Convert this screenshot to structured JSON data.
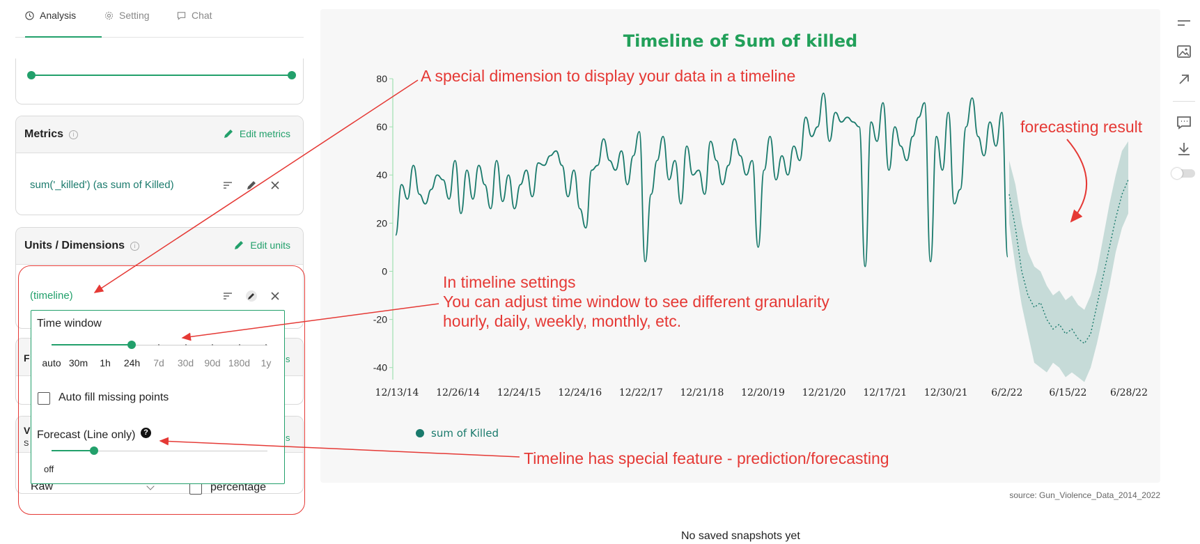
{
  "tabs": [
    {
      "label": "Analysis",
      "icon": "clock-icon",
      "active": true
    },
    {
      "label": "Setting",
      "icon": "gear-icon",
      "active": false
    },
    {
      "label": "Chat",
      "icon": "chat-icon",
      "active": false
    }
  ],
  "metrics": {
    "title": "Metrics",
    "edit_label": "Edit metrics",
    "item": "sum('_killed') (as sum of Killed)"
  },
  "units": {
    "title": "Units / Dimensions",
    "edit_label": "Edit units",
    "item": "(timeline)"
  },
  "popup": {
    "time_window_label": "Time window",
    "time_window_options": [
      "auto",
      "30m",
      "1h",
      "24h",
      "7d",
      "30d",
      "90d",
      "180d",
      "1y"
    ],
    "time_window_selected": "24h",
    "auto_fill_label": "Auto fill missing points",
    "auto_fill_checked": false,
    "forecast_label": "Forecast (Line only)",
    "forecast_help": "?",
    "forecast_value": "off"
  },
  "hidden_peeks": {
    "f_letter": "F",
    "v_letter": "V",
    "s_letter": "S",
    "s_green": "s",
    "raw_label": "Raw",
    "percentage_label": "percentage"
  },
  "chart_data": {
    "type": "line",
    "title": "Timeline of Sum of killed",
    "xlabel": "",
    "ylabel": "",
    "ylim": [
      -45,
      80
    ],
    "yticks": [
      80,
      60,
      40,
      20,
      0,
      -20,
      -40
    ],
    "x_tick_labels": [
      "12/13/14",
      "12/26/14",
      "12/24/15",
      "12/24/16",
      "12/22/17",
      "12/21/18",
      "12/20/19",
      "12/21/20",
      "12/17/21",
      "12/30/21",
      "6/2/22",
      "6/15/22",
      "6/28/22"
    ],
    "series": [
      {
        "name": "sum of Killed",
        "color": "#1a7a6c",
        "values": [
          15,
          36,
          30,
          44,
          32,
          28,
          34,
          40,
          38,
          30,
          46,
          24,
          42,
          30,
          44,
          36,
          26,
          46,
          29,
          40,
          26,
          36,
          42,
          31,
          45,
          44,
          48,
          50,
          44,
          31,
          42,
          26,
          18,
          42,
          44,
          55,
          46,
          42,
          50,
          36,
          48,
          58,
          4,
          32,
          46,
          56,
          38,
          46,
          28,
          52,
          40,
          42,
          32,
          54,
          46,
          36,
          44,
          55,
          48,
          40,
          46,
          10,
          42,
          56,
          38,
          48,
          40,
          52,
          46,
          64,
          56,
          60,
          74,
          54,
          66,
          62,
          64,
          62,
          60,
          2,
          62,
          54,
          70,
          42,
          60,
          52,
          46,
          56,
          64,
          70,
          4,
          56,
          42,
          66,
          28,
          34,
          60,
          72,
          56,
          48,
          62,
          52,
          66,
          6
        ]
      },
      {
        "name": "forecast",
        "color": "#1a7a6c",
        "values": [
          32,
          18,
          0,
          -10,
          -15,
          -13,
          -20,
          -24,
          -22,
          -26,
          -24,
          -28,
          -30,
          -26,
          -14,
          -2,
          10,
          22,
          32,
          38
        ]
      }
    ],
    "forecast_band_upper": [
      46,
      36,
      20,
      8,
      2,
      0,
      -6,
      -10,
      -8,
      -12,
      -10,
      -14,
      -16,
      -10,
      0,
      14,
      28,
      40,
      50,
      54
    ],
    "forecast_band_lower": [
      20,
      2,
      -14,
      -26,
      -38,
      -40,
      -42,
      -38,
      -40,
      -44,
      -42,
      -44,
      -46,
      -40,
      -30,
      -18,
      -6,
      8,
      18,
      24
    ],
    "legend": [
      {
        "label": "sum of Killed",
        "color": "#1a7a6c"
      }
    ],
    "legend_position": "bottom-left",
    "grid": false
  },
  "source_text": "source: Gun_Violence_Data_2014_2022",
  "snapshots_text": "No saved snapshots yet",
  "annotations": {
    "timeline_note": "A special dimension to display your data in a timeline",
    "forecast_result": "forecasting result",
    "settings_line1": "In timeline settings",
    "settings_line2": "You can adjust time window to see different granularity",
    "settings_line3": "hourly, daily, weekly, monthly, etc.",
    "feature_note": "Timeline has special feature - prediction/forecasting"
  },
  "colors": {
    "accent": "#22a06b",
    "series": "#1a7a6c",
    "annotation": "#e53935"
  }
}
